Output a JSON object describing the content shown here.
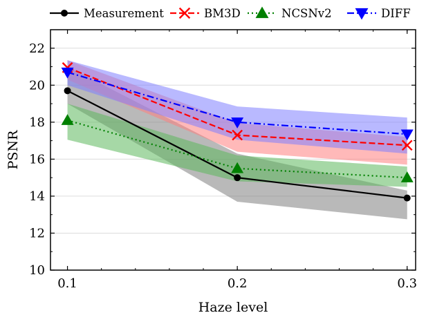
{
  "chart_data": {
    "type": "line",
    "title": "",
    "xlabel": "Haze level",
    "ylabel": "PSNR",
    "x": [
      0.1,
      0.2,
      0.3
    ],
    "x_tick_labels": [
      "0.1",
      "0.2",
      "0.3"
    ],
    "xlim": [
      0.09,
      0.305
    ],
    "ylim": [
      10,
      23
    ],
    "y_ticks": [
      10,
      12,
      14,
      16,
      18,
      20,
      22
    ],
    "y_tick_labels": [
      "10",
      "12",
      "14",
      "16",
      "18",
      "20",
      "22"
    ],
    "grid": "horizontal",
    "legend_position": "top",
    "series": [
      {
        "name": "Measurement",
        "values": [
          19.7,
          15.0,
          13.9
        ],
        "lower": [
          19.0,
          13.7,
          12.75
        ],
        "upper": [
          21.0,
          16.3,
          14.3
        ],
        "color": "#000000",
        "band_color": "#808080",
        "line_style": "solid",
        "marker": "circle"
      },
      {
        "name": "BM3D",
        "values": [
          20.95,
          17.3,
          16.75
        ],
        "lower": [
          20.3,
          16.4,
          15.7
        ],
        "upper": [
          21.35,
          17.95,
          17.2
        ],
        "color": "#ff0000",
        "band_color": "#ff7f7f",
        "line_style": "dashed",
        "marker": "x"
      },
      {
        "name": "NCSNv2",
        "values": [
          18.1,
          15.5,
          15.0
        ],
        "lower": [
          17.05,
          14.8,
          14.5
        ],
        "upper": [
          19.0,
          16.2,
          15.6
        ],
        "color": "#008000",
        "band_color": "#5cb85c",
        "line_style": "dotted",
        "marker": "triangle-up"
      },
      {
        "name": "DIFF",
        "values": [
          20.7,
          18.0,
          17.35
        ],
        "lower": [
          20.0,
          17.05,
          16.3
        ],
        "upper": [
          21.35,
          18.85,
          18.25
        ],
        "color": "#0000ff",
        "band_color": "#7f7fff",
        "line_style": "dashdot",
        "marker": "triangle-down"
      }
    ]
  }
}
